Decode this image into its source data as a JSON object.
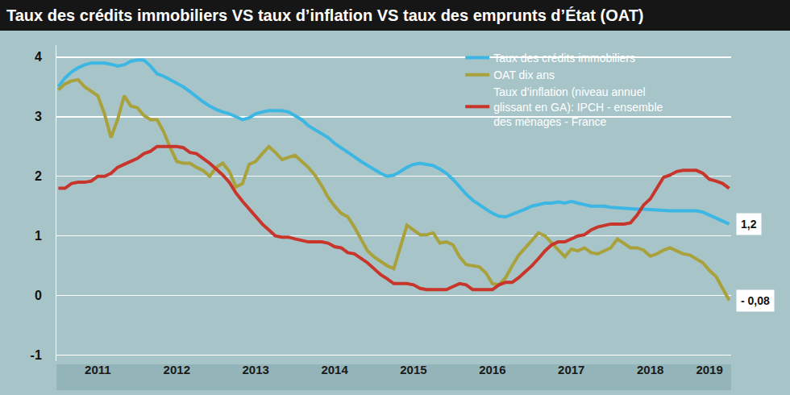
{
  "chart_data": {
    "type": "line",
    "title": "Taux des crédits immobiliers VS taux d’inflation VS taux des emprunts d’État (OAT)",
    "categories": [
      null,
      null,
      null,
      null,
      null,
      null,
      "2011",
      null,
      null,
      null,
      null,
      null,
      null,
      null,
      null,
      null,
      null,
      null,
      "2012",
      null,
      null,
      null,
      null,
      null,
      null,
      null,
      null,
      null,
      null,
      null,
      "2013",
      null,
      null,
      null,
      null,
      null,
      null,
      null,
      null,
      null,
      null,
      null,
      "2014",
      null,
      null,
      null,
      null,
      null,
      null,
      null,
      null,
      null,
      null,
      null,
      "2015",
      null,
      null,
      null,
      null,
      null,
      null,
      null,
      null,
      null,
      null,
      null,
      "2016",
      null,
      null,
      null,
      null,
      null,
      null,
      null,
      null,
      null,
      null,
      null,
      "2017",
      null,
      null,
      null,
      null,
      null,
      null,
      null,
      null,
      null,
      null,
      null,
      "2018",
      null,
      null,
      null,
      null,
      null,
      null,
      null,
      null,
      "2019",
      null,
      null,
      null
    ],
    "series": [
      {
        "name": "Taux des crédits immobiliers",
        "color": "#3cb6e3",
        "values": [
          3.5,
          3.65,
          3.75,
          3.82,
          3.87,
          3.9,
          3.9,
          3.9,
          3.88,
          3.85,
          3.87,
          3.93,
          3.95,
          3.95,
          3.85,
          3.72,
          3.68,
          3.62,
          3.56,
          3.5,
          3.42,
          3.33,
          3.25,
          3.18,
          3.12,
          3.08,
          3.05,
          3.0,
          2.95,
          2.98,
          3.05,
          3.08,
          3.1,
          3.1,
          3.1,
          3.08,
          3.02,
          2.95,
          2.85,
          2.78,
          2.72,
          2.65,
          2.55,
          2.48,
          2.4,
          2.33,
          2.25,
          2.18,
          2.12,
          2.05,
          2.0,
          2.02,
          2.08,
          2.15,
          2.2,
          2.22,
          2.2,
          2.18,
          2.12,
          2.05,
          1.95,
          1.82,
          1.7,
          1.6,
          1.52,
          1.45,
          1.38,
          1.33,
          1.32,
          1.36,
          1.4,
          1.45,
          1.5,
          1.52,
          1.55,
          1.55,
          1.57,
          1.55,
          1.58,
          1.55,
          1.52,
          1.5,
          1.5,
          1.5,
          1.48,
          1.47,
          1.46,
          1.46,
          1.45,
          1.45,
          1.44,
          1.43,
          1.42,
          1.42,
          1.42,
          1.42,
          1.42,
          1.42,
          1.4,
          1.35,
          1.3,
          1.25,
          1.2
        ]
      },
      {
        "name": "OAT dix ans",
        "color": "#a9a13b",
        "values": [
          3.45,
          3.55,
          3.6,
          3.62,
          3.5,
          3.42,
          3.35,
          3.05,
          2.65,
          2.95,
          3.35,
          3.18,
          3.15,
          3.02,
          2.95,
          2.95,
          2.75,
          2.48,
          2.25,
          2.22,
          2.22,
          2.15,
          2.1,
          2.0,
          2.15,
          2.22,
          2.08,
          1.82,
          1.88,
          2.2,
          2.25,
          2.38,
          2.5,
          2.4,
          2.28,
          2.32,
          2.35,
          2.25,
          2.15,
          2.02,
          1.85,
          1.65,
          1.5,
          1.38,
          1.32,
          1.15,
          0.95,
          0.75,
          0.65,
          0.58,
          0.5,
          0.45,
          0.8,
          1.18,
          1.1,
          1.02,
          1.02,
          1.05,
          0.88,
          0.9,
          0.85,
          0.65,
          0.52,
          0.5,
          0.48,
          0.38,
          0.2,
          0.18,
          0.3,
          0.5,
          0.68,
          0.8,
          0.92,
          1.05,
          1.0,
          0.88,
          0.75,
          0.65,
          0.78,
          0.75,
          0.8,
          0.72,
          0.7,
          0.75,
          0.8,
          0.95,
          0.88,
          0.8,
          0.8,
          0.76,
          0.66,
          0.7,
          0.76,
          0.8,
          0.75,
          0.7,
          0.68,
          0.62,
          0.55,
          0.42,
          0.32,
          0.12,
          -0.08
        ]
      },
      {
        "name": "Taux d’inflation (niveau annuel glissant en GA): IPCH - ensemble des ménages - France",
        "color": "#c8352b",
        "values": [
          1.8,
          1.8,
          1.88,
          1.9,
          1.9,
          1.92,
          2.0,
          2.0,
          2.05,
          2.15,
          2.2,
          2.25,
          2.3,
          2.38,
          2.42,
          2.5,
          2.5,
          2.5,
          2.5,
          2.48,
          2.4,
          2.38,
          2.3,
          2.22,
          2.12,
          2.02,
          1.9,
          1.72,
          1.58,
          1.45,
          1.32,
          1.2,
          1.1,
          1.0,
          0.98,
          0.98,
          0.95,
          0.92,
          0.9,
          0.9,
          0.9,
          0.88,
          0.82,
          0.8,
          0.72,
          0.7,
          0.62,
          0.55,
          0.45,
          0.35,
          0.28,
          0.2,
          0.2,
          0.2,
          0.18,
          0.12,
          0.1,
          0.1,
          0.1,
          0.1,
          0.15,
          0.2,
          0.18,
          0.1,
          0.1,
          0.1,
          0.1,
          0.18,
          0.22,
          0.22,
          0.3,
          0.4,
          0.5,
          0.62,
          0.75,
          0.85,
          0.9,
          0.9,
          0.95,
          1.0,
          1.02,
          1.1,
          1.15,
          1.18,
          1.2,
          1.2,
          1.2,
          1.22,
          1.35,
          1.52,
          1.62,
          1.8,
          1.98,
          2.02,
          2.08,
          2.1,
          2.1,
          2.1,
          2.05,
          1.95,
          1.92,
          1.88,
          1.8
        ]
      }
    ],
    "ylim": [
      -1.1,
      4.2
    ],
    "yticks": [
      -1,
      0,
      1,
      2,
      3,
      4
    ],
    "grid": true,
    "legend": "top-right",
    "annotations": [
      {
        "text": "1,2",
        "y": 1.2
      },
      {
        "text": "- 0,08",
        "y": -0.08
      }
    ]
  }
}
